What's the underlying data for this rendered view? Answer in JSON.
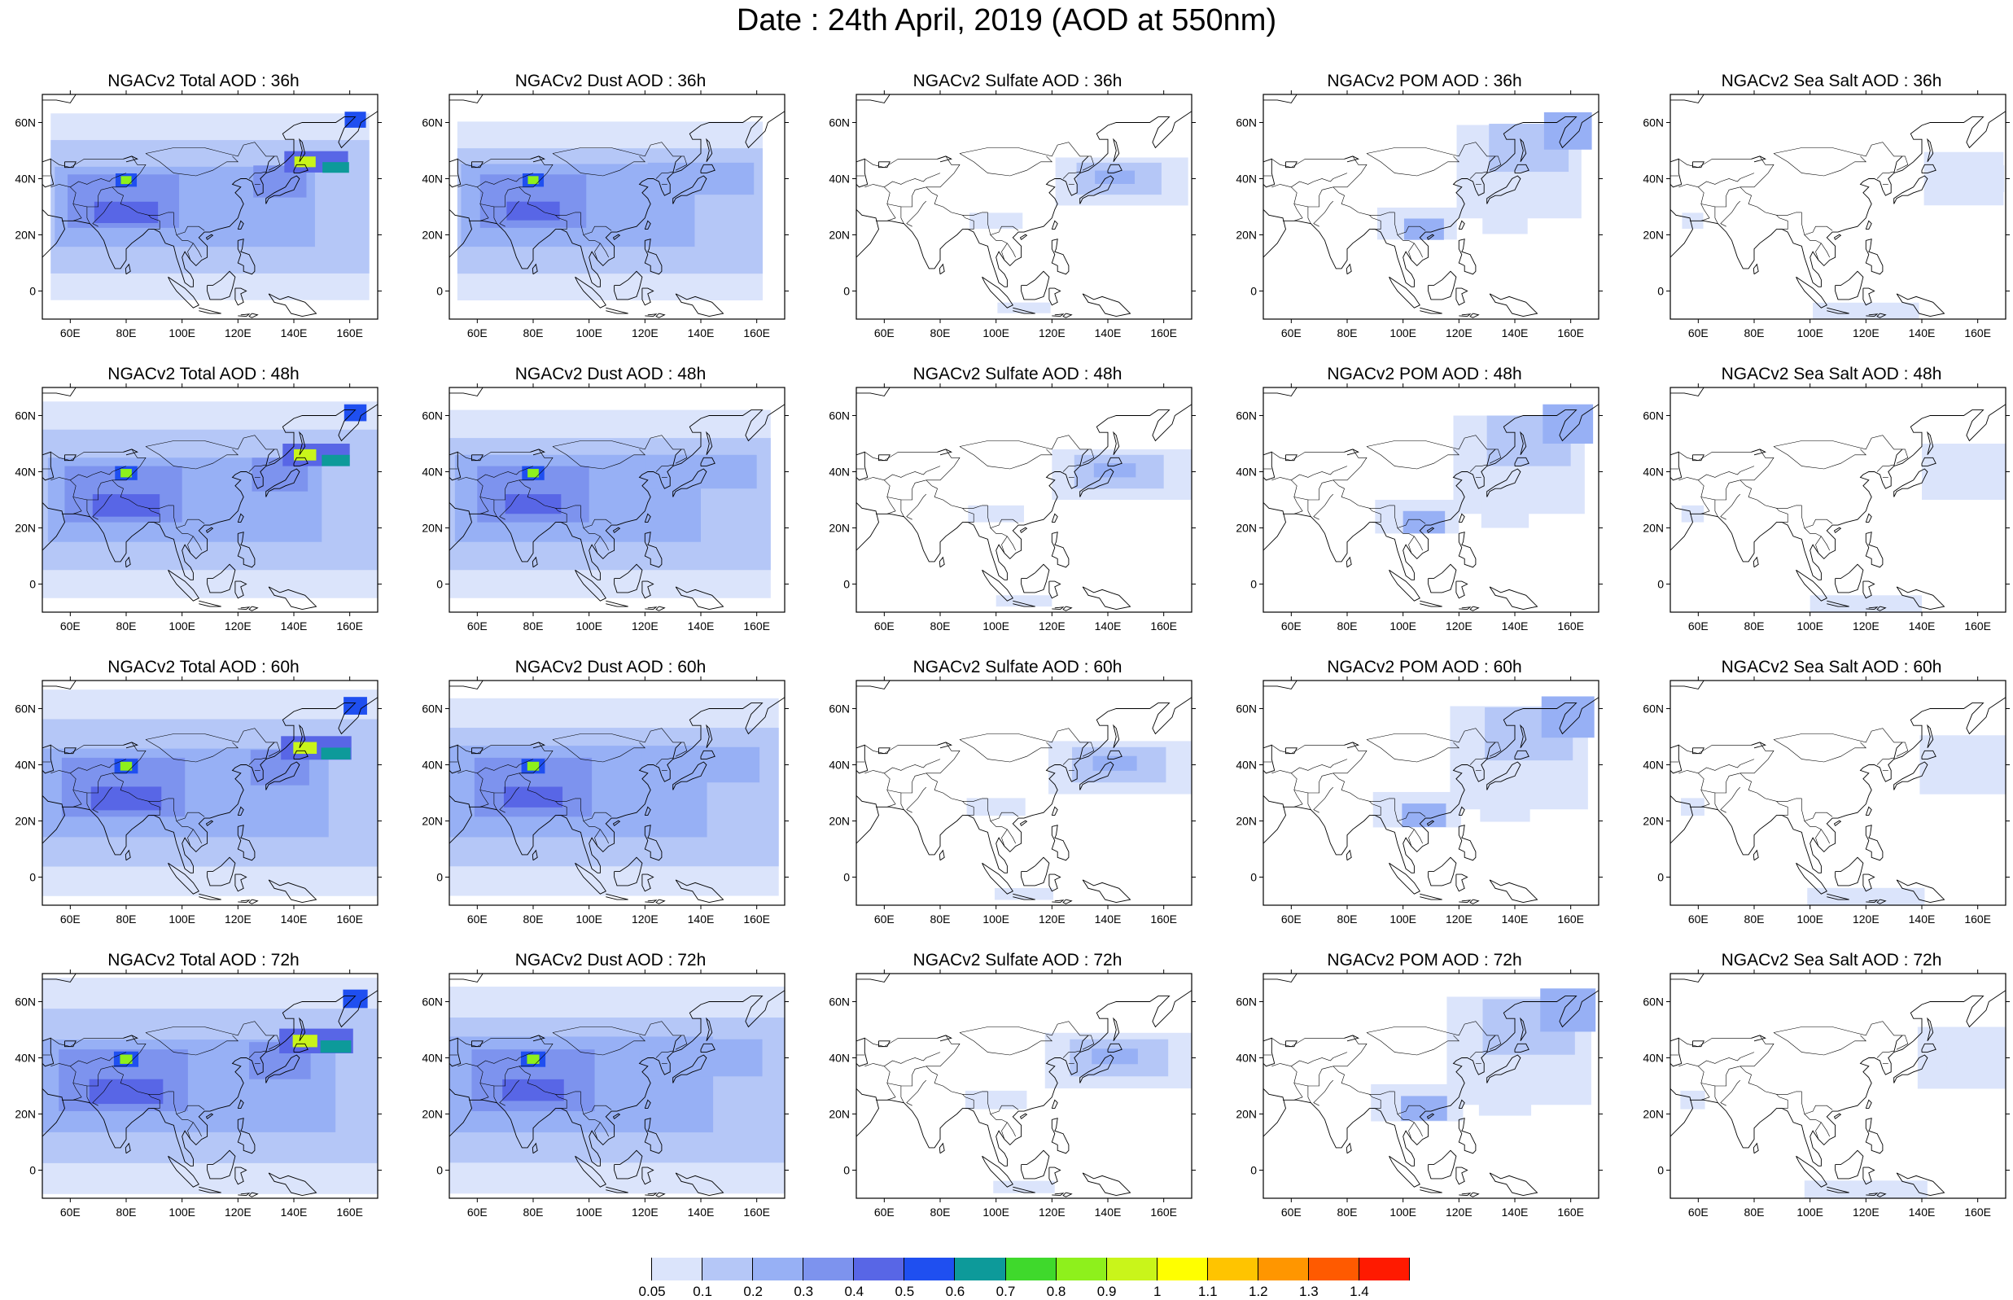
{
  "figure": {
    "title": "Date : 24th April, 2019 (AOD at 550nm)",
    "rows": [
      "36h",
      "48h",
      "60h",
      "72h"
    ]
  },
  "panels": [
    {
      "id": "total-36",
      "species": "total",
      "title": "NGACv2 Total AOD : 36h"
    },
    {
      "id": "dust-36",
      "species": "dust",
      "title": "NGACv2 Dust AOD : 36h"
    },
    {
      "id": "sulfate-36",
      "species": "sulfate",
      "title": "NGACv2 Sulfate AOD : 36h"
    },
    {
      "id": "pom-36",
      "species": "pom",
      "title": "NGACv2 POM AOD : 36h"
    },
    {
      "id": "seasalt-36",
      "species": "seasalt",
      "title": "NGACv2 Sea Salt AOD : 36h"
    },
    {
      "id": "total-48",
      "species": "total",
      "title": "NGACv2 Total AOD : 48h"
    },
    {
      "id": "dust-48",
      "species": "dust",
      "title": "NGACv2 Dust AOD : 48h"
    },
    {
      "id": "sulfate-48",
      "species": "sulfate",
      "title": "NGACv2 Sulfate AOD : 48h"
    },
    {
      "id": "pom-48",
      "species": "pom",
      "title": "NGACv2 POM AOD : 48h"
    },
    {
      "id": "seasalt-48",
      "species": "seasalt",
      "title": "NGACv2 Sea Salt AOD : 48h"
    },
    {
      "id": "total-60",
      "species": "total",
      "title": "NGACv2 Total AOD : 60h"
    },
    {
      "id": "dust-60",
      "species": "dust",
      "title": "NGACv2 Dust AOD : 60h"
    },
    {
      "id": "sulfate-60",
      "species": "sulfate",
      "title": "NGACv2 Sulfate AOD : 60h"
    },
    {
      "id": "pom-60",
      "species": "pom",
      "title": "NGACv2 POM AOD : 60h"
    },
    {
      "id": "seasalt-60",
      "species": "seasalt",
      "title": "NGACv2 Sea Salt AOD : 60h"
    },
    {
      "id": "total-72",
      "species": "total",
      "title": "NGACv2 Total AOD : 72h"
    },
    {
      "id": "dust-72",
      "species": "dust",
      "title": "NGACv2 Dust AOD : 72h"
    },
    {
      "id": "sulfate-72",
      "species": "sulfate",
      "title": "NGACv2 Sulfate AOD : 72h"
    },
    {
      "id": "pom-72",
      "species": "pom",
      "title": "NGACv2 POM AOD : 72h"
    },
    {
      "id": "seasalt-72",
      "species": "seasalt",
      "title": "NGACv2 Sea Salt  AOD : 72h"
    }
  ],
  "axes": {
    "lon_range": [
      50,
      170
    ],
    "lat_range": [
      -10,
      70
    ],
    "x_ticks": [
      "60E",
      "80E",
      "100E",
      "120E",
      "140E",
      "160E"
    ],
    "x_tick_values": [
      60,
      80,
      100,
      120,
      140,
      160
    ],
    "y_ticks": [
      "0",
      "20N",
      "40N",
      "60N"
    ],
    "y_tick_values": [
      0,
      20,
      40,
      60
    ]
  },
  "colorbar": {
    "labels": [
      "0.05",
      "0.1",
      "0.2",
      "0.3",
      "0.4",
      "0.5",
      "0.6",
      "0.7",
      "0.8",
      "0.9",
      "1",
      "1.1",
      "1.2",
      "1.3",
      "1.4"
    ],
    "colors": [
      "#ffffff",
      "#dbe4fb",
      "#b5c7f7",
      "#97b0f5",
      "#7d93ee",
      "#5866e6",
      "#1f4ff0",
      "#0d9a9a",
      "#3fd92c",
      "#8ef01c",
      "#c9f51a",
      "#ffff00",
      "#ffc400",
      "#ff9600",
      "#ff5a00",
      "#ff1a00"
    ]
  }
}
